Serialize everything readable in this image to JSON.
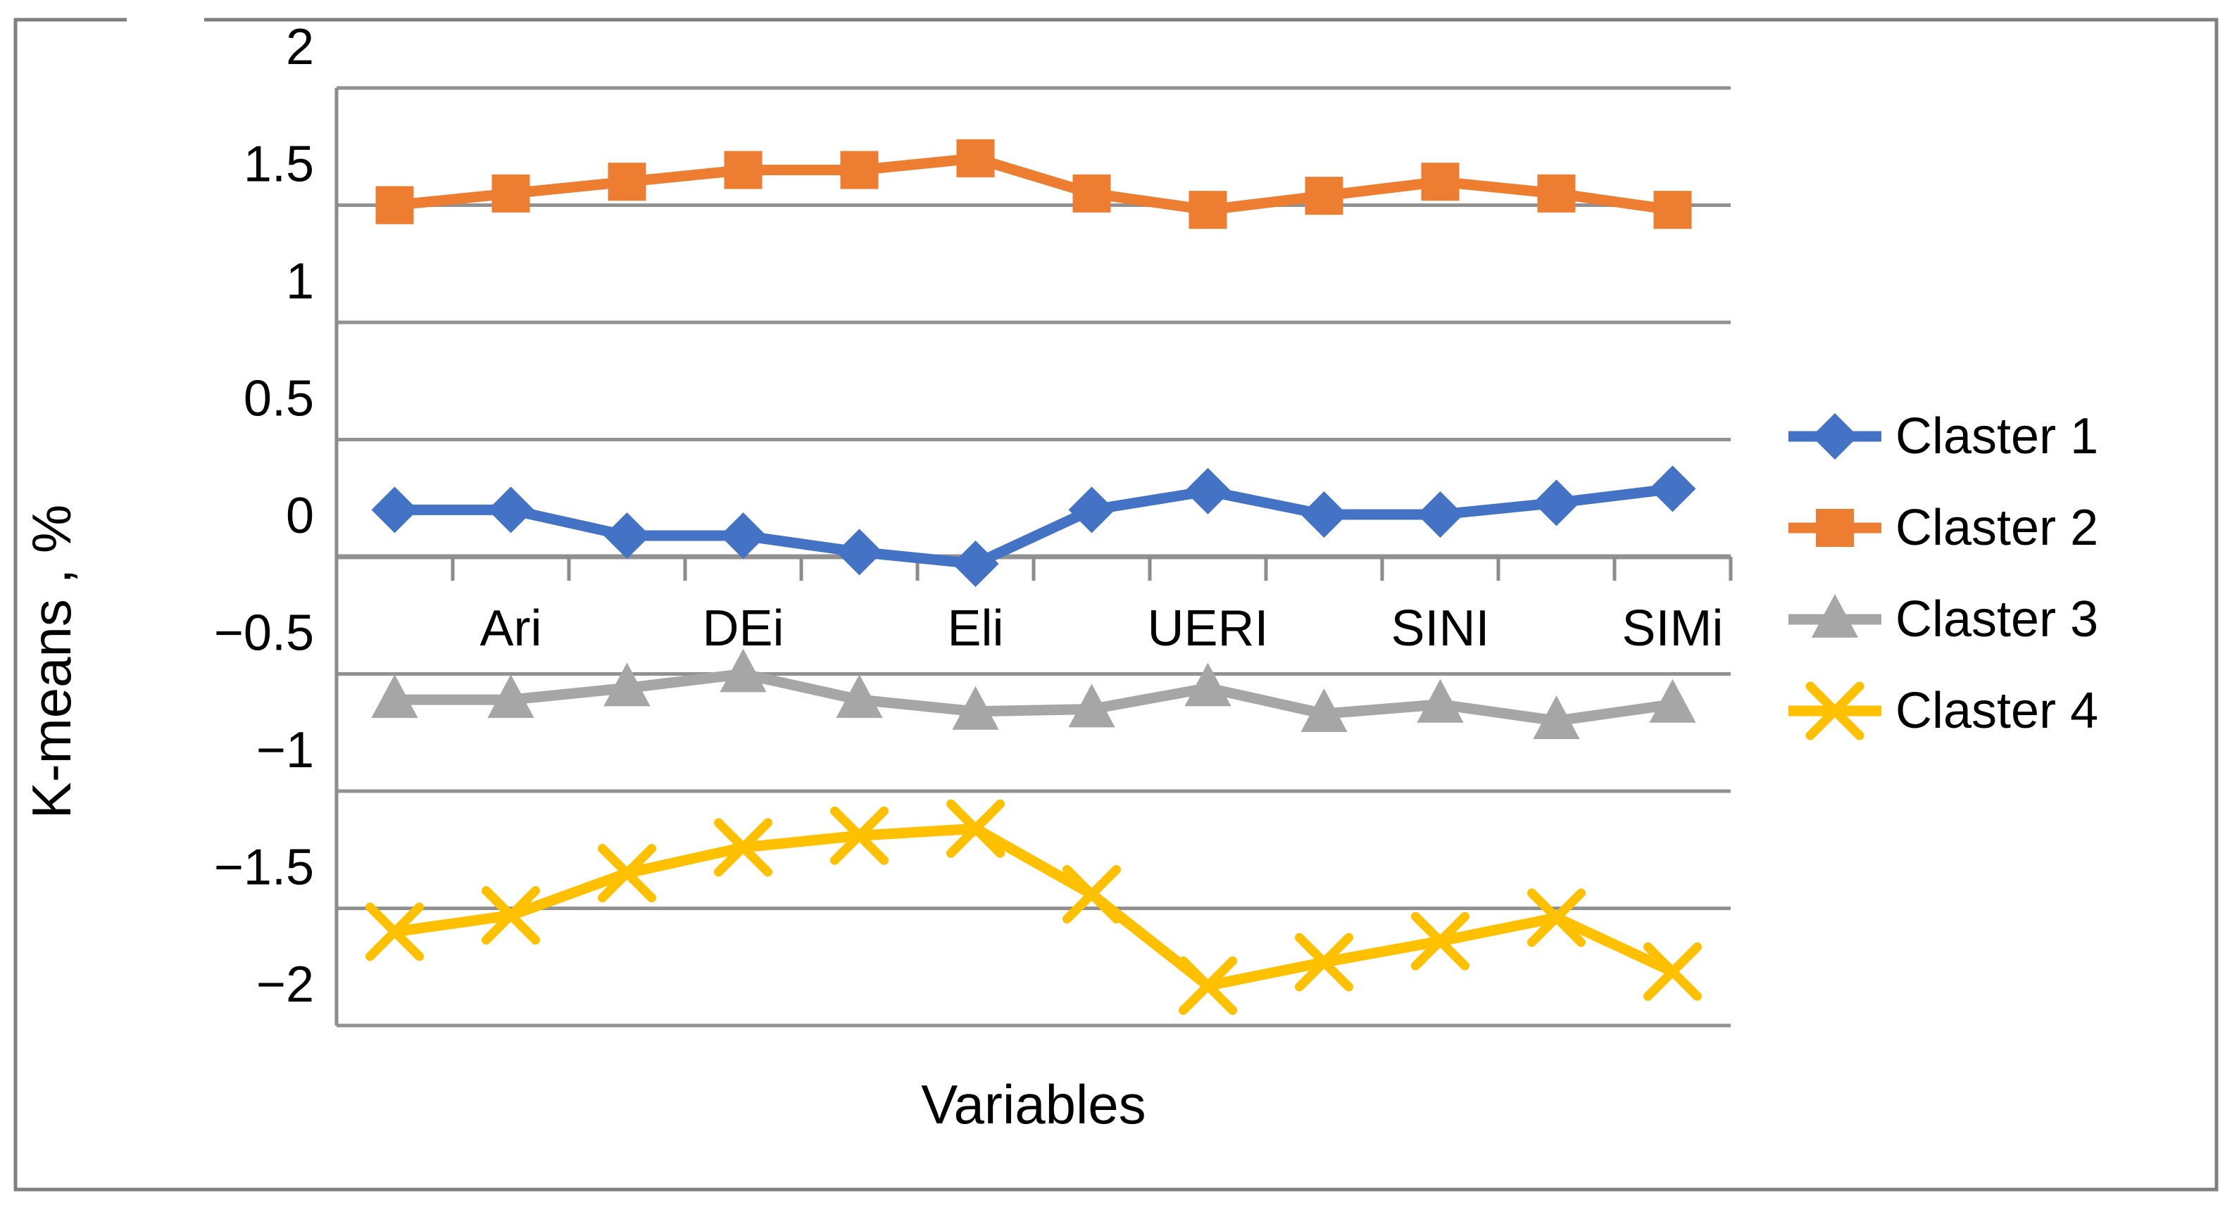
{
  "figure": {
    "background": "#ffffff",
    "border_color": "#7f7f7f"
  },
  "chart_data": {
    "type": "line",
    "title": "",
    "xlabel": "Variables",
    "ylabel": "K-means , %",
    "ylim": [
      -2,
      2
    ],
    "ytick_step": 0.5,
    "yticks": [
      2,
      1.5,
      1,
      0.5,
      0,
      -0.5,
      -1,
      -1.5,
      -2
    ],
    "ytick_labels": [
      "2",
      "1.5",
      "1",
      "0.5",
      "0",
      "−0.5",
      "−1",
      "−1.5",
      "−2"
    ],
    "categories": [
      "",
      "Ari",
      "",
      "DEi",
      "",
      "Eli",
      "",
      "UERI",
      "",
      "SINI",
      "",
      "SIMi"
    ],
    "grid": true,
    "legend_position": "right",
    "gridline_color": "#919191",
    "axis_color": "#8c8c8c",
    "series": [
      {
        "name": "Claster 1",
        "color": "#4472C4",
        "marker": "diamond",
        "values": [
          0.2,
          0.2,
          0.09,
          0.09,
          0.02,
          -0.03,
          0.2,
          0.28,
          0.18,
          0.18,
          0.23,
          0.29
        ]
      },
      {
        "name": "Claster 2",
        "color": "#ED7D31",
        "marker": "square",
        "values": [
          1.5,
          1.55,
          1.6,
          1.65,
          1.65,
          1.7,
          1.55,
          1.48,
          1.54,
          1.6,
          1.55,
          1.48
        ]
      },
      {
        "name": "Claster 3",
        "color": "#A6A6A6",
        "marker": "triangle",
        "values": [
          -0.61,
          -0.61,
          -0.56,
          -0.5,
          -0.61,
          -0.66,
          -0.65,
          -0.56,
          -0.67,
          -0.63,
          -0.7,
          -0.63
        ]
      },
      {
        "name": "Claster 4",
        "color": "#FFC000",
        "marker": "x",
        "values": [
          -1.6,
          -1.53,
          -1.35,
          -1.24,
          -1.19,
          -1.16,
          -1.44,
          -1.83,
          -1.73,
          -1.64,
          -1.54,
          -1.77
        ]
      }
    ]
  }
}
